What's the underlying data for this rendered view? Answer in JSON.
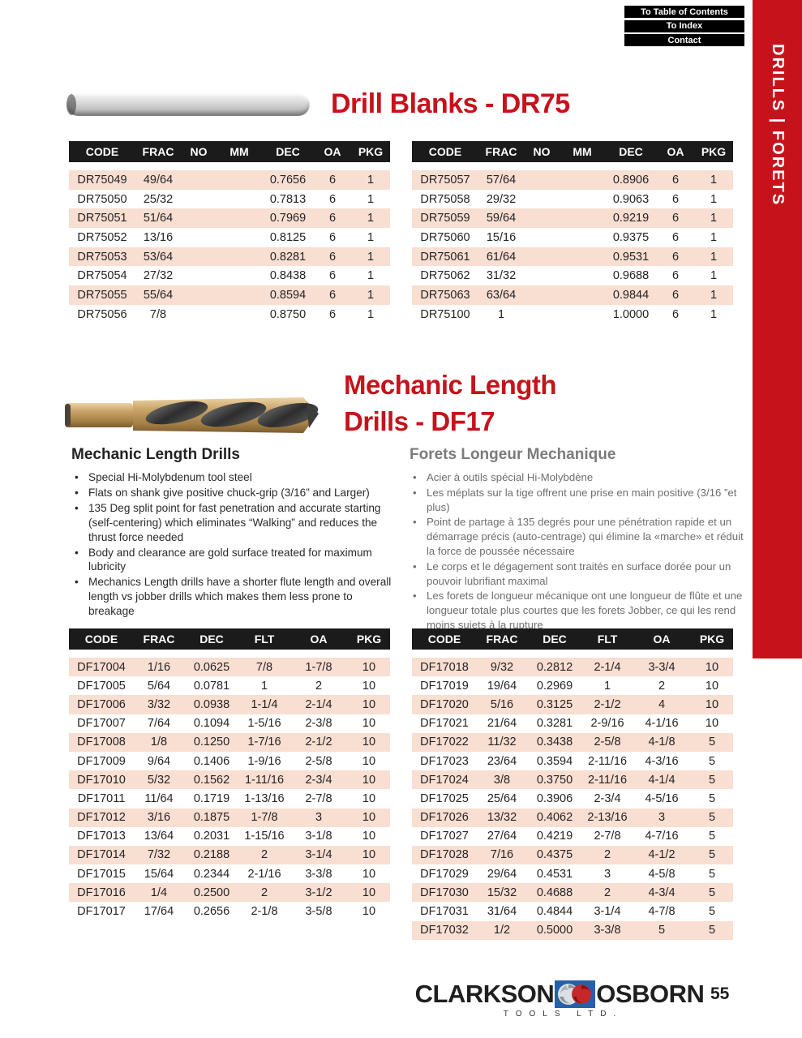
{
  "nav": {
    "buttons": [
      "To Table of Contents",
      "To Index",
      "Contact"
    ]
  },
  "sidebar": {
    "label": "DRILLS | FORETS"
  },
  "dr75": {
    "title": "Drill Blanks - DR75",
    "columns": [
      "CODE",
      "FRAC",
      "NO",
      "MM",
      "DEC",
      "OA",
      "PKG"
    ],
    "left_rows": [
      [
        "DR75049",
        "49/64",
        "",
        "",
        "0.7656",
        "6",
        "1"
      ],
      [
        "DR75050",
        "25/32",
        "",
        "",
        "0.7813",
        "6",
        "1"
      ],
      [
        "DR75051",
        "51/64",
        "",
        "",
        "0.7969",
        "6",
        "1"
      ],
      [
        "DR75052",
        "13/16",
        "",
        "",
        "0.8125",
        "6",
        "1"
      ],
      [
        "DR75053",
        "53/64",
        "",
        "",
        "0.8281",
        "6",
        "1"
      ],
      [
        "DR75054",
        "27/32",
        "",
        "",
        "0.8438",
        "6",
        "1"
      ],
      [
        "DR75055",
        "55/64",
        "",
        "",
        "0.8594",
        "6",
        "1"
      ],
      [
        "DR75056",
        "7/8",
        "",
        "",
        "0.8750",
        "6",
        "1"
      ]
    ],
    "right_rows": [
      [
        "DR75057",
        "57/64",
        "",
        "",
        "0.8906",
        "6",
        "1"
      ],
      [
        "DR75058",
        "29/32",
        "",
        "",
        "0.9063",
        "6",
        "1"
      ],
      [
        "DR75059",
        "59/64",
        "",
        "",
        "0.9219",
        "6",
        "1"
      ],
      [
        "DR75060",
        "15/16",
        "",
        "",
        "0.9375",
        "6",
        "1"
      ],
      [
        "DR75061",
        "61/64",
        "",
        "",
        "0.9531",
        "6",
        "1"
      ],
      [
        "DR75062",
        "31/32",
        "",
        "",
        "0.9688",
        "6",
        "1"
      ],
      [
        "DR75063",
        "63/64",
        "",
        "",
        "0.9844",
        "6",
        "1"
      ],
      [
        "DR75100",
        "1",
        "",
        "",
        "1.0000",
        "6",
        "1"
      ]
    ]
  },
  "df17": {
    "title_line1": "Mechanic Length",
    "title_line2": "Drills - DF17",
    "en": {
      "heading": "Mechanic Length Drills",
      "bullets": [
        "Special Hi-Molybdenum tool steel",
        "Flats on shank give positive chuck-grip (3/16” and Larger)",
        "135 Deg split point for fast penetration and accurate starting (self-centering) which eliminates “Walking” and reduces the thrust force needed",
        "Body and clearance are gold surface treated for maximum lubricity",
        "Mechanics Length drills have a shorter flute length and overall length vs jobber drills which makes them less prone to breakage"
      ]
    },
    "fr": {
      "heading": "Forets Longeur Mechanique",
      "bullets": [
        "Acier à outils spécial Hi-Molybdène",
        "Les méplats sur la tige offrent une prise en main positive (3/16 ”et plus)",
        "Point de partage à 135 degrés pour une pénétration rapide et un démarrage précis (auto-centrage) qui élimine la «marche» et réduit la force de poussée nécessaire",
        "Le corps et le dégagement sont traités en surface dorée pour un pouvoir lubrifiant maximal",
        "Les forets de longueur mécanique ont une longueur de flûte et une longueur totale plus courtes que les forets Jobber, ce qui les rend moins sujets à la rupture"
      ]
    },
    "columns": [
      "CODE",
      "FRAC",
      "DEC",
      "FLT",
      "OA",
      "PKG"
    ],
    "left_rows": [
      [
        "DF17004",
        "1/16",
        "0.0625",
        "7/8",
        "1-7/8",
        "10"
      ],
      [
        "DF17005",
        "5/64",
        "0.0781",
        "1",
        "2",
        "10"
      ],
      [
        "DF17006",
        "3/32",
        "0.0938",
        "1-1/4",
        "2-1/4",
        "10"
      ],
      [
        "DF17007",
        "7/64",
        "0.1094",
        "1-5/16",
        "2-3/8",
        "10"
      ],
      [
        "DF17008",
        "1/8",
        "0.1250",
        "1-7/16",
        "2-1/2",
        "10"
      ],
      [
        "DF17009",
        "9/64",
        "0.1406",
        "1-9/16",
        "2-5/8",
        "10"
      ],
      [
        "DF17010",
        "5/32",
        "0.1562",
        "1-11/16",
        "2-3/4",
        "10"
      ],
      [
        "DF17011",
        "11/64",
        "0.1719",
        "1-13/16",
        "2-7/8",
        "10"
      ],
      [
        "DF17012",
        "3/16",
        "0.1875",
        "1-7/8",
        "3",
        "10"
      ],
      [
        "DF17013",
        "13/64",
        "0.2031",
        "1-15/16",
        "3-1/8",
        "10"
      ],
      [
        "DF17014",
        "7/32",
        "0.2188",
        "2",
        "3-1/4",
        "10"
      ],
      [
        "DF17015",
        "15/64",
        "0.2344",
        "2-1/16",
        "3-3/8",
        "10"
      ],
      [
        "DF17016",
        "1/4",
        "0.2500",
        "2",
        "3-1/2",
        "10"
      ],
      [
        "DF17017",
        "17/64",
        "0.2656",
        "2-1/8",
        "3-5/8",
        "10"
      ]
    ],
    "right_rows": [
      [
        "DF17018",
        "9/32",
        "0.2812",
        "2-1/4",
        "3-3/4",
        "10"
      ],
      [
        "DF17019",
        "19/64",
        "0.2969",
        "1",
        "2",
        "10"
      ],
      [
        "DF17020",
        "5/16",
        "0.3125",
        "2-1/2",
        "4",
        "10"
      ],
      [
        "DF17021",
        "21/64",
        "0.3281",
        "2-9/16",
        "4-1/16",
        "10"
      ],
      [
        "DF17022",
        "11/32",
        "0.3438",
        "2-5/8",
        "4-1/8",
        "5"
      ],
      [
        "DF17023",
        "23/64",
        "0.3594",
        "2-11/16",
        "4-3/16",
        "5"
      ],
      [
        "DF17024",
        "3/8",
        "0.3750",
        "2-11/16",
        "4-1/4",
        "5"
      ],
      [
        "DF17025",
        "25/64",
        "0.3906",
        "2-3/4",
        "4-5/16",
        "5"
      ],
      [
        "DF17026",
        "13/32",
        "0.4062",
        "2-13/16",
        "3",
        "5"
      ],
      [
        "DF17027",
        "27/64",
        "0.4219",
        "2-7/8",
        "4-7/16",
        "5"
      ],
      [
        "DF17028",
        "7/16",
        "0.4375",
        "2",
        "4-1/2",
        "5"
      ],
      [
        "DF17029",
        "29/64",
        "0.4531",
        "3",
        "4-5/8",
        "5"
      ],
      [
        "DF17030",
        "15/32",
        "0.4688",
        "2",
        "4-3/4",
        "5"
      ],
      [
        "DF17031",
        "31/64",
        "0.4844",
        "3-1/4",
        "4-7/8",
        "5"
      ],
      [
        "DF17032",
        "1/2",
        "0.5000",
        "3-3/8",
        "5",
        "5"
      ]
    ]
  },
  "footer": {
    "brand_left": "CLARKSON",
    "brand_right": "OSBORN",
    "brand_sub": "TOOLS LTD.",
    "page": "55"
  },
  "colors": {
    "accent_red": "#c6131b",
    "row_pink": "#f9ded2",
    "header_black": "#1b1b1b",
    "gray_text": "#6e6e6e",
    "logo_blue": "#2660a8",
    "logo_red": "#c5272d"
  }
}
